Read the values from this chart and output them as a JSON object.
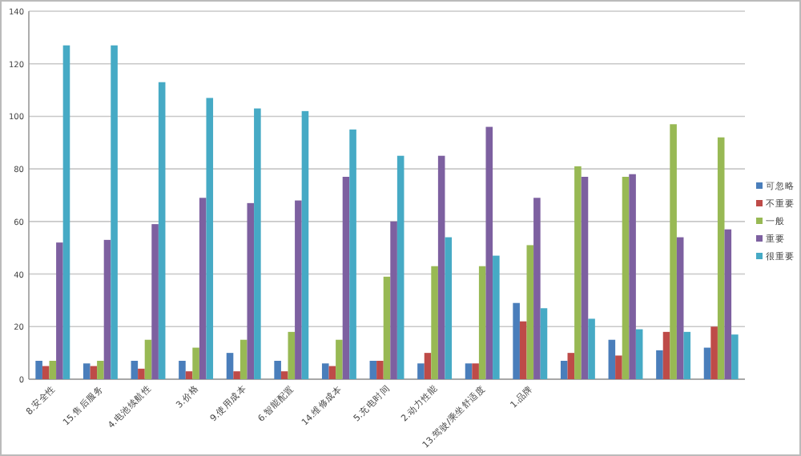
{
  "chart_data": {
    "type": "bar",
    "categories": [
      "8.安全性",
      "15.售后服务",
      "4.电池续航性",
      "3.价格",
      "9.使用成本",
      "6.智能配置",
      "14.维修成本",
      "5.充电时间",
      "2.动力性能",
      "13.驾驶/乘坐舒适度",
      "1.品牌",
      null,
      null,
      null,
      null
    ],
    "series": [
      {
        "name": "可忽略",
        "color": "#4a7ebb",
        "values": [
          7,
          6,
          7,
          7,
          10,
          7,
          6,
          7,
          6,
          6,
          29,
          7,
          15,
          11,
          12
        ]
      },
      {
        "name": "不重要",
        "color": "#be4b48",
        "values": [
          5,
          5,
          4,
          3,
          3,
          3,
          5,
          7,
          10,
          6,
          22,
          10,
          9,
          18,
          20
        ]
      },
      {
        "name": "一般",
        "color": "#98b954",
        "values": [
          7,
          7,
          15,
          12,
          15,
          18,
          15,
          39,
          43,
          43,
          51,
          81,
          77,
          97,
          92
        ]
      },
      {
        "name": "重要",
        "color": "#7d60a0",
        "values": [
          52,
          53,
          59,
          69,
          67,
          68,
          77,
          60,
          85,
          96,
          69,
          77,
          78,
          54,
          57
        ]
      },
      {
        "name": "很重要",
        "color": "#46aac5",
        "values": [
          127,
          127,
          113,
          107,
          103,
          102,
          95,
          85,
          54,
          47,
          27,
          23,
          19,
          18,
          17
        ]
      }
    ],
    "ylim": [
      0,
      140
    ],
    "yticks": [
      0,
      20,
      40,
      60,
      80,
      100,
      120,
      140
    ],
    "grid": "y",
    "legend": "right"
  }
}
